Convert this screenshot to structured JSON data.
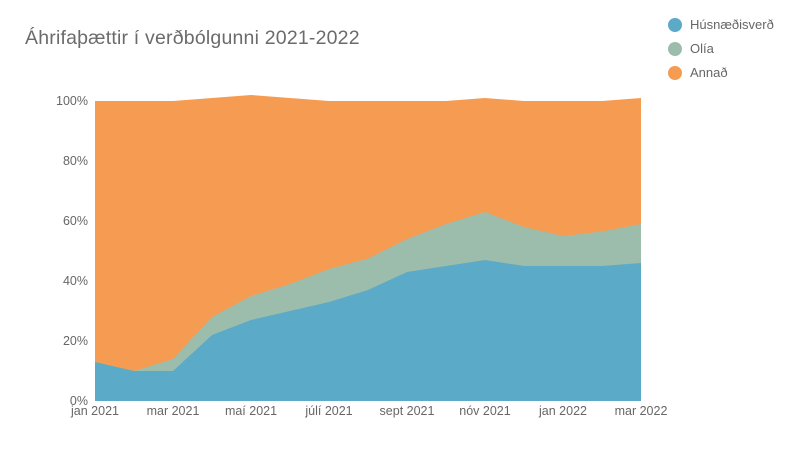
{
  "chart_data": {
    "type": "area",
    "stacked": true,
    "title": "Áhrifaþættir í verðbólgunni 2021-2022",
    "x": [
      "jan 2021",
      "feb 2021",
      "mar 2021",
      "apr 2021",
      "maí 2021",
      "jún 2021",
      "júlí 2021",
      "ágúst 2021",
      "sept 2021",
      "okt 2021",
      "nóv 2021",
      "des 2021",
      "jan 2022",
      "feb 2022",
      "mar 2022"
    ],
    "series": [
      {
        "name": "Húsnæðisverð",
        "color": "#5AAAC8",
        "values": [
          13,
          10,
          10,
          22,
          27,
          30,
          33,
          37,
          43,
          45,
          47,
          45,
          45,
          45,
          46
        ]
      },
      {
        "name": "Olía",
        "color": "#9DBDAC",
        "values": [
          0,
          0,
          4,
          6,
          8,
          9,
          11,
          10.5,
          11,
          14,
          16,
          13,
          10,
          11.5,
          13
        ]
      },
      {
        "name": "Annað",
        "color": "#F59C52",
        "values": [
          87,
          90,
          86,
          73,
          67,
          62,
          56,
          52.5,
          46,
          41,
          38,
          42,
          45,
          43.5,
          42
        ]
      }
    ],
    "y_ticks": [
      {
        "label": "0%",
        "value": 0
      },
      {
        "label": "20%",
        "value": 20
      },
      {
        "label": "40%",
        "value": 40
      },
      {
        "label": "60%",
        "value": 60
      },
      {
        "label": "80%",
        "value": 80
      },
      {
        "label": "100%",
        "value": 100
      }
    ],
    "x_ticks": [
      {
        "label": "jan 2021",
        "index": 0
      },
      {
        "label": "mar 2021",
        "index": 2
      },
      {
        "label": "maí 2021",
        "index": 4
      },
      {
        "label": "júlí 2021",
        "index": 6
      },
      {
        "label": "sept 2021",
        "index": 8
      },
      {
        "label": "nóv 2021",
        "index": 10
      },
      {
        "label": "jan 2022",
        "index": 12
      },
      {
        "label": "mar 2022",
        "index": 14
      }
    ],
    "ylim": [
      0,
      100
    ],
    "grid": false,
    "legend_position": "top-right",
    "text_color": "#666666"
  }
}
